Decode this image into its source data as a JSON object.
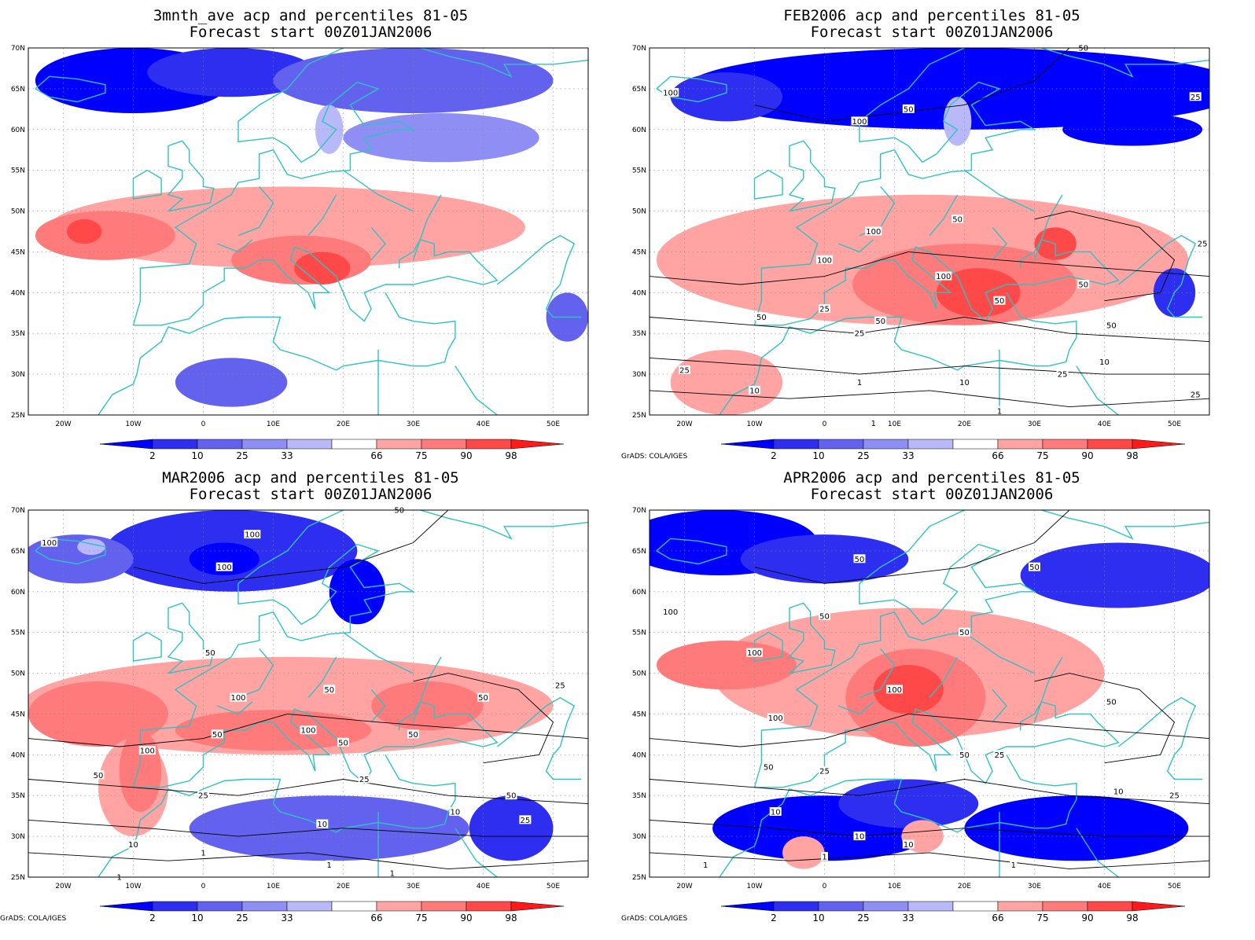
{
  "panels": [
    {
      "id": "p1",
      "title_line1": "3mnth_ave acp and percentiles 81-05",
      "title_line2": "Forecast start 00Z01JAN2006",
      "credit": "",
      "contour_labels": [],
      "blobs": [
        {
          "cls": 0,
          "lon": -10,
          "lat": 66,
          "rx": 14,
          "ry": 4
        },
        {
          "cls": 1,
          "lon": 4,
          "lat": 67,
          "rx": 12,
          "ry": 3
        },
        {
          "cls": 2,
          "lon": 30,
          "lat": 66,
          "rx": 20,
          "ry": 4
        },
        {
          "cls": 3,
          "lon": 34,
          "lat": 59,
          "rx": 14,
          "ry": 3
        },
        {
          "cls": 4,
          "lon": 18,
          "lat": 60,
          "rx": 2,
          "ry": 3
        },
        {
          "cls": 5,
          "lon": 12,
          "lat": 48,
          "rx": 34,
          "ry": 5
        },
        {
          "cls": 6,
          "lon": -14,
          "lat": 47,
          "rx": 10,
          "ry": 3
        },
        {
          "cls": 6,
          "lon": 14,
          "lat": 44,
          "rx": 10,
          "ry": 3
        },
        {
          "cls": 7,
          "lon": 17,
          "lat": 43,
          "rx": 4,
          "ry": 2
        },
        {
          "cls": 7,
          "lon": -17,
          "lat": 47.5,
          "rx": 2.5,
          "ry": 1.5
        },
        {
          "cls": 2,
          "lon": 4,
          "lat": 29,
          "rx": 8,
          "ry": 3
        },
        {
          "cls": 2,
          "lon": 52,
          "lat": 37,
          "rx": 3,
          "ry": 3
        }
      ]
    },
    {
      "id": "p2",
      "title_line1": "FEB2006 acp and percentiles 81-05",
      "title_line2": "Forecast start 00Z01JAN2006",
      "credit": "GrADS: COLA/IGES",
      "contour_labels": [
        {
          "text": "100",
          "lon": -22,
          "lat": 64.5
        },
        {
          "text": "100",
          "lon": 5,
          "lat": 61
        },
        {
          "text": "50",
          "lon": 12,
          "lat": 62.5
        },
        {
          "text": "50",
          "lon": 37,
          "lat": 70
        },
        {
          "text": "25",
          "lon": 53,
          "lat": 64
        },
        {
          "text": "100",
          "lon": 7,
          "lat": 47.5
        },
        {
          "text": "50",
          "lon": 19,
          "lat": 49
        },
        {
          "text": "100",
          "lon": 0,
          "lat": 44
        },
        {
          "text": "25",
          "lon": 54,
          "lat": 46
        },
        {
          "text": "50",
          "lon": 37,
          "lat": 41
        },
        {
          "text": "100",
          "lon": 17,
          "lat": 42
        },
        {
          "text": "50",
          "lon": 25,
          "lat": 39
        },
        {
          "text": "25",
          "lon": 0,
          "lat": 38
        },
        {
          "text": "50",
          "lon": -9,
          "lat": 37
        },
        {
          "text": "50",
          "lon": 8,
          "lat": 36.5
        },
        {
          "text": "50",
          "lon": 41,
          "lat": 36
        },
        {
          "text": "25",
          "lon": 5,
          "lat": 35
        },
        {
          "text": "10",
          "lon": 40,
          "lat": 31.5
        },
        {
          "text": "25",
          "lon": -20,
          "lat": 30.5
        },
        {
          "text": "25",
          "lon": 34,
          "lat": 30
        },
        {
          "text": "10",
          "lon": 20,
          "lat": 29
        },
        {
          "text": "1",
          "lon": 5,
          "lat": 29
        },
        {
          "text": "10",
          "lon": -10,
          "lat": 28
        },
        {
          "text": "25",
          "lon": 53,
          "lat": 27.5
        },
        {
          "text": "1",
          "lon": 25,
          "lat": 25.5
        },
        {
          "text": "1",
          "lon": 7,
          "lat": 24
        }
      ],
      "blobs": [
        {
          "cls": 0,
          "lon": 20,
          "lat": 65,
          "rx": 40,
          "ry": 5
        },
        {
          "cls": 1,
          "lon": -14,
          "lat": 64,
          "rx": 8,
          "ry": 3
        },
        {
          "cls": 0,
          "lon": 44,
          "lat": 60,
          "rx": 10,
          "ry": 2
        },
        {
          "cls": 4,
          "lon": 19,
          "lat": 61,
          "rx": 2,
          "ry": 3
        },
        {
          "cls": 5,
          "lon": 14,
          "lat": 44,
          "rx": 38,
          "ry": 8
        },
        {
          "cls": 6,
          "lon": 20,
          "lat": 41,
          "rx": 16,
          "ry": 5
        },
        {
          "cls": 7,
          "lon": 22,
          "lat": 40,
          "rx": 6,
          "ry": 3
        },
        {
          "cls": 7,
          "lon": 33,
          "lat": 46,
          "rx": 3,
          "ry": 2
        },
        {
          "cls": 5,
          "lon": -14,
          "lat": 29,
          "rx": 8,
          "ry": 4
        },
        {
          "cls": 1,
          "lon": 50,
          "lat": 40,
          "rx": 3,
          "ry": 3
        }
      ]
    },
    {
      "id": "p3",
      "title_line1": "MAR2006 acp and percentiles 81-05",
      "title_line2": "Forecast start 00Z01JAN2006",
      "credit": "GrADS: COLA/IGES",
      "contour_labels": [
        {
          "text": "100",
          "lon": 7,
          "lat": 67
        },
        {
          "text": "50",
          "lon": 28,
          "lat": 70
        },
        {
          "text": "100",
          "lon": -22,
          "lat": 66
        },
        {
          "text": "100",
          "lon": 3,
          "lat": 63
        },
        {
          "text": "50",
          "lon": 1,
          "lat": 52.5
        },
        {
          "text": "50",
          "lon": 18,
          "lat": 48
        },
        {
          "text": "100",
          "lon": 5,
          "lat": 47
        },
        {
          "text": "50",
          "lon": 40,
          "lat": 47
        },
        {
          "text": "25",
          "lon": 51,
          "lat": 48.5
        },
        {
          "text": "50",
          "lon": 2,
          "lat": 42.5
        },
        {
          "text": "100",
          "lon": 15,
          "lat": 43
        },
        {
          "text": "50",
          "lon": 20,
          "lat": 41.5
        },
        {
          "text": "50",
          "lon": 30,
          "lat": 42.5
        },
        {
          "text": "100",
          "lon": -8,
          "lat": 40.5
        },
        {
          "text": "50",
          "lon": -15,
          "lat": 37.5
        },
        {
          "text": "25",
          "lon": 23,
          "lat": 37
        },
        {
          "text": "25",
          "lon": 0,
          "lat": 35
        },
        {
          "text": "50",
          "lon": 44,
          "lat": 35
        },
        {
          "text": "10",
          "lon": 36,
          "lat": 33
        },
        {
          "text": "25",
          "lon": 46,
          "lat": 32
        },
        {
          "text": "10",
          "lon": 17,
          "lat": 31.5
        },
        {
          "text": "10",
          "lon": -10,
          "lat": 29
        },
        {
          "text": "1",
          "lon": 0,
          "lat": 28
        },
        {
          "text": "1",
          "lon": 18,
          "lat": 26.5
        },
        {
          "text": "1",
          "lon": 27,
          "lat": 25.5
        },
        {
          "text": "1",
          "lon": -12,
          "lat": 25
        }
      ],
      "blobs": [
        {
          "cls": 1,
          "lon": 4,
          "lat": 65,
          "rx": 18,
          "ry": 5
        },
        {
          "cls": 0,
          "lon": 3,
          "lat": 64,
          "rx": 5,
          "ry": 2
        },
        {
          "cls": 0,
          "lon": 22,
          "lat": 60,
          "rx": 4,
          "ry": 4
        },
        {
          "cls": 2,
          "lon": -18,
          "lat": 64,
          "rx": 8,
          "ry": 3
        },
        {
          "cls": 4,
          "lon": -16,
          "lat": 65.5,
          "rx": 2,
          "ry": 1
        },
        {
          "cls": 5,
          "lon": 12,
          "lat": 46,
          "rx": 38,
          "ry": 6
        },
        {
          "cls": 6,
          "lon": -15,
          "lat": 45,
          "rx": 10,
          "ry": 4
        },
        {
          "cls": 6,
          "lon": 10,
          "lat": 43,
          "rx": 14,
          "ry": 2.5
        },
        {
          "cls": 6,
          "lon": 32,
          "lat": 46,
          "rx": 8,
          "ry": 3
        },
        {
          "cls": 5,
          "lon": -10,
          "lat": 36,
          "rx": 5,
          "ry": 6
        },
        {
          "cls": 6,
          "lon": -9,
          "lat": 38,
          "rx": 3,
          "ry": 5
        },
        {
          "cls": 2,
          "lon": 18,
          "lat": 31,
          "rx": 20,
          "ry": 4
        },
        {
          "cls": 1,
          "lon": 44,
          "lat": 31,
          "rx": 6,
          "ry": 4
        }
      ]
    },
    {
      "id": "p4",
      "title_line1": "APR2006 acp and percentiles 81-05",
      "title_line2": "Forecast start 00Z01JAN2006",
      "credit": "GrADS: COLA/IGES",
      "contour_labels": [
        {
          "text": "50",
          "lon": 5,
          "lat": 64
        },
        {
          "text": "50",
          "lon": 30,
          "lat": 63
        },
        {
          "text": "100",
          "lon": -22,
          "lat": 57.5
        },
        {
          "text": "50",
          "lon": 0,
          "lat": 57
        },
        {
          "text": "50",
          "lon": 20,
          "lat": 55
        },
        {
          "text": "100",
          "lon": -10,
          "lat": 52.5
        },
        {
          "text": "100",
          "lon": 10,
          "lat": 48
        },
        {
          "text": "50",
          "lon": 41,
          "lat": 46.5
        },
        {
          "text": "100",
          "lon": -7,
          "lat": 44.5
        },
        {
          "text": "50",
          "lon": -8,
          "lat": 38.5
        },
        {
          "text": "25",
          "lon": 0,
          "lat": 38
        },
        {
          "text": "50",
          "lon": 20,
          "lat": 40
        },
        {
          "text": "25",
          "lon": 25,
          "lat": 40
        },
        {
          "text": "10",
          "lon": 42,
          "lat": 35.5
        },
        {
          "text": "25",
          "lon": 50,
          "lat": 35
        },
        {
          "text": "10",
          "lon": -7,
          "lat": 33
        },
        {
          "text": "10",
          "lon": 5,
          "lat": 30
        },
        {
          "text": "10",
          "lon": 12,
          "lat": 29
        },
        {
          "text": "1",
          "lon": 0,
          "lat": 27.5
        },
        {
          "text": "1",
          "lon": 27,
          "lat": 26.5
        },
        {
          "text": "1",
          "lon": -17,
          "lat": 26.5
        }
      ],
      "blobs": [
        {
          "cls": 0,
          "lon": -15,
          "lat": 66,
          "rx": 14,
          "ry": 4
        },
        {
          "cls": 1,
          "lon": 0,
          "lat": 64,
          "rx": 12,
          "ry": 3
        },
        {
          "cls": 1,
          "lon": 42,
          "lat": 62,
          "rx": 14,
          "ry": 4
        },
        {
          "cls": 5,
          "lon": 12,
          "lat": 50,
          "rx": 28,
          "ry": 8
        },
        {
          "cls": 6,
          "lon": -14,
          "lat": 51,
          "rx": 10,
          "ry": 3
        },
        {
          "cls": 6,
          "lon": 13,
          "lat": 47,
          "rx": 10,
          "ry": 6
        },
        {
          "cls": 7,
          "lon": 12,
          "lat": 48,
          "rx": 5,
          "ry": 3
        },
        {
          "cls": 0,
          "lon": 0,
          "lat": 31,
          "rx": 16,
          "ry": 4
        },
        {
          "cls": 0,
          "lon": 36,
          "lat": 31,
          "rx": 16,
          "ry": 4
        },
        {
          "cls": 1,
          "lon": 12,
          "lat": 34,
          "rx": 10,
          "ry": 3
        },
        {
          "cls": 5,
          "lon": -3,
          "lat": 28,
          "rx": 3,
          "ry": 2
        },
        {
          "cls": 5,
          "lon": 14,
          "lat": 30,
          "rx": 3,
          "ry": 2
        }
      ]
    }
  ],
  "colorbar": {
    "labels": [
      "2",
      "10",
      "25",
      "33",
      "66",
      "75",
      "90",
      "98"
    ],
    "colors": [
      "#0000ff",
      "#2e2ef0",
      "#6262ef",
      "#8e8ef5",
      "#b9b9fa",
      "#ffffff",
      "#ffa3a3",
      "#ff7b7b",
      "#ff4848",
      "#ff1a1a"
    ]
  },
  "colors": {
    "coastline": "#2fc2c2",
    "contour": "#000000"
  },
  "axes": {
    "lat_ticks": [
      "70N",
      "65N",
      "60N",
      "55N",
      "50N",
      "45N",
      "40N",
      "35N",
      "30N",
      "25N"
    ],
    "lon_ticks": [
      "20W",
      "10W",
      "0",
      "10E",
      "20E",
      "30E",
      "40E",
      "50E"
    ]
  }
}
